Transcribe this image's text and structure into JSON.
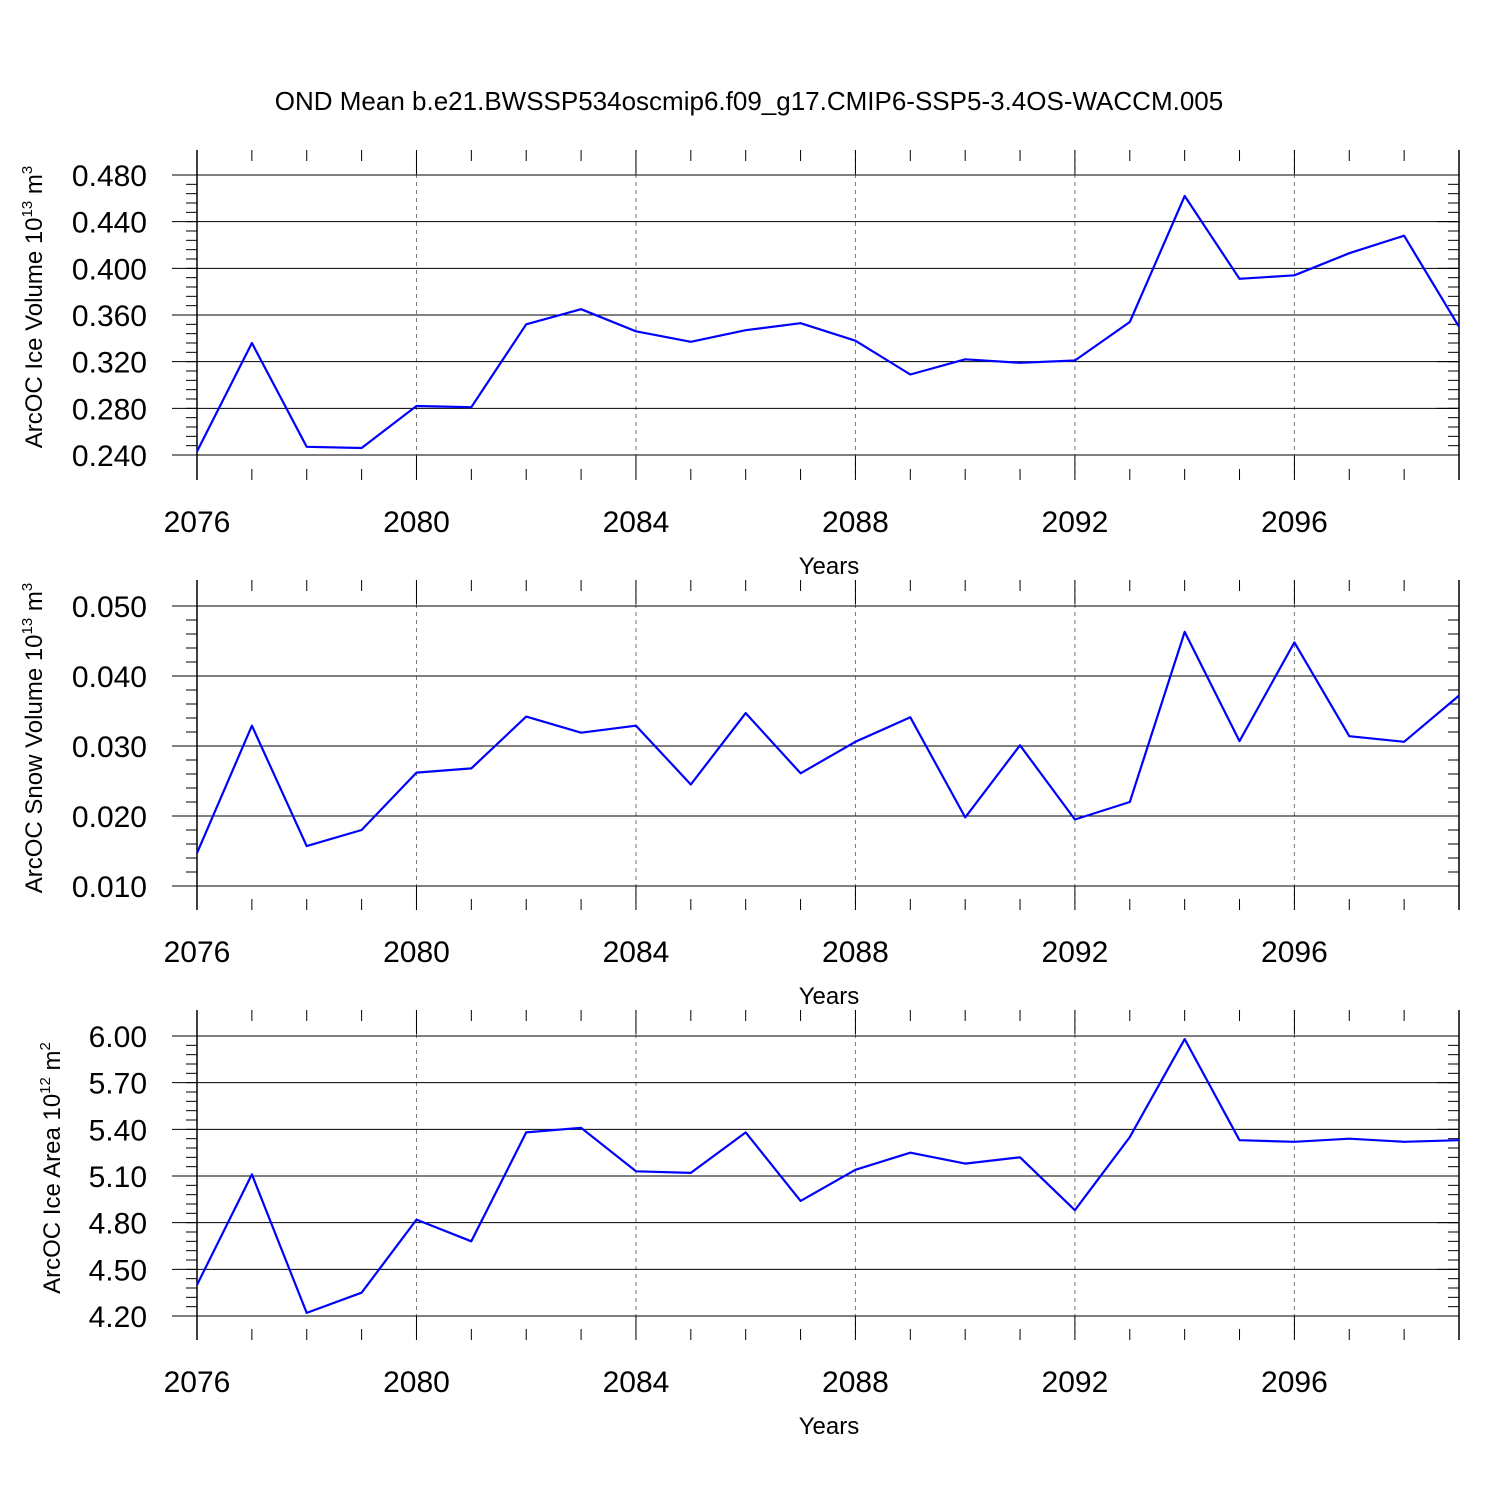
{
  "figure_title": "OND Mean b.e21.BWSSP534oscmip6.f09_g17.CMIP6-SSP5-3.4OS-WACCM.005",
  "chart_data": [
    {
      "type": "line",
      "ylabel_main": "ArcOC Ice Volume 10",
      "ylabel_exp": "13",
      "ylabel_unit": " m",
      "ylabel_unit_exp": "3",
      "xlabel": "Years",
      "xlim": [
        2076,
        2099
      ],
      "xticks": [
        2076,
        2080,
        2084,
        2088,
        2092,
        2096
      ],
      "xtick_labels": [
        "2076",
        "2080",
        "2084",
        "2088",
        "2092",
        "2096"
      ],
      "ylim": [
        0.24,
        0.48
      ],
      "yticks": [
        0.24,
        0.28,
        0.32,
        0.36,
        0.4,
        0.44,
        0.48
      ],
      "ytick_labels": [
        "0.240",
        "0.280",
        "0.320",
        "0.360",
        "0.400",
        "0.440",
        "0.480"
      ],
      "line_color": "#0000ff",
      "x": [
        2076,
        2077,
        2078,
        2079,
        2080,
        2081,
        2082,
        2083,
        2084,
        2085,
        2086,
        2087,
        2088,
        2089,
        2090,
        2091,
        2092,
        2093,
        2094,
        2095,
        2096,
        2097,
        2098,
        2099
      ],
      "y": [
        0.243,
        0.336,
        0.247,
        0.246,
        0.282,
        0.281,
        0.352,
        0.365,
        0.346,
        0.337,
        0.347,
        0.353,
        0.338,
        0.309,
        0.322,
        0.319,
        0.321,
        0.354,
        0.462,
        0.391,
        0.394,
        0.413,
        0.428,
        0.35
      ]
    },
    {
      "type": "line",
      "ylabel_main": "ArcOC Snow Volume 10",
      "ylabel_exp": "13",
      "ylabel_unit": " m",
      "ylabel_unit_exp": "3",
      "xlabel": "Years",
      "xlim": [
        2076,
        2099
      ],
      "xticks": [
        2076,
        2080,
        2084,
        2088,
        2092,
        2096
      ],
      "xtick_labels": [
        "2076",
        "2080",
        "2084",
        "2088",
        "2092",
        "2096"
      ],
      "ylim": [
        0.01,
        0.05
      ],
      "yticks": [
        0.01,
        0.02,
        0.03,
        0.04,
        0.05
      ],
      "ytick_labels": [
        "0.010",
        "0.020",
        "0.030",
        "0.040",
        "0.050"
      ],
      "line_color": "#0000ff",
      "x": [
        2076,
        2077,
        2078,
        2079,
        2080,
        2081,
        2082,
        2083,
        2084,
        2085,
        2086,
        2087,
        2088,
        2089,
        2090,
        2091,
        2092,
        2093,
        2094,
        2095,
        2096,
        2097,
        2098,
        2099
      ],
      "y": [
        0.0147,
        0.0329,
        0.0157,
        0.018,
        0.0262,
        0.0268,
        0.0342,
        0.0319,
        0.0329,
        0.0245,
        0.0347,
        0.0261,
        0.0306,
        0.0341,
        0.0198,
        0.0301,
        0.0195,
        0.022,
        0.0463,
        0.0307,
        0.0448,
        0.0314,
        0.0306,
        0.0372
      ]
    },
    {
      "type": "line",
      "ylabel_main": "ArcOC Ice Area 10",
      "ylabel_exp": "12",
      "ylabel_unit": " m",
      "ylabel_unit_exp": "2",
      "xlabel": "Years",
      "xlim": [
        2076,
        2099
      ],
      "xticks": [
        2076,
        2080,
        2084,
        2088,
        2092,
        2096
      ],
      "xtick_labels": [
        "2076",
        "2080",
        "2084",
        "2088",
        "2092",
        "2096"
      ],
      "ylim": [
        4.2,
        6.0
      ],
      "yticks": [
        4.2,
        4.5,
        4.8,
        5.1,
        5.4,
        5.7,
        6.0
      ],
      "ytick_labels": [
        "4.20",
        "4.50",
        "4.80",
        "5.10",
        "5.40",
        "5.70",
        "6.00"
      ],
      "line_color": "#0000ff",
      "x": [
        2076,
        2077,
        2078,
        2079,
        2080,
        2081,
        2082,
        2083,
        2084,
        2085,
        2086,
        2087,
        2088,
        2089,
        2090,
        2091,
        2092,
        2093,
        2094,
        2095,
        2096,
        2097,
        2098,
        2099
      ],
      "y": [
        4.4,
        5.11,
        4.22,
        4.35,
        4.82,
        4.68,
        5.38,
        5.41,
        5.13,
        5.12,
        5.38,
        4.94,
        5.14,
        5.25,
        5.18,
        5.22,
        4.88,
        5.35,
        5.98,
        5.33,
        5.32,
        5.34,
        5.32,
        5.33
      ]
    }
  ]
}
